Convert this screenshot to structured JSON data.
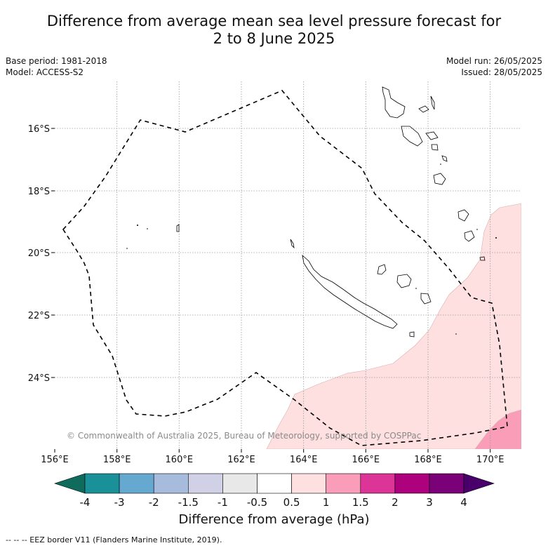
{
  "title": {
    "line1": "Difference from average mean sea level pressure forecast for",
    "line2": "2 to 8 June 2025"
  },
  "base_period": "Base period: 1981-2018",
  "model": "Model: ACCESS-S2",
  "model_run": "Model run: 26/05/2025",
  "issued": "Issued: 28/05/2025",
  "copyright": "© Commonwealth of Australia 2025, Bureau of Meteorology, supported by COSPPac",
  "footnote": "--  --  -- EEZ border V11 (Flanders Marine Institute, 2019).",
  "map": {
    "lon_range": [
      156,
      171
    ],
    "lat_range": [
      -26.2,
      -14.4
    ],
    "lon_ticks": [
      "156°E",
      "158°E",
      "160°E",
      "162°E",
      "164°E",
      "166°E",
      "168°E",
      "170°E"
    ],
    "lat_ticks": [
      "16°S",
      "18°S",
      "20°S",
      "22°S",
      "24°S"
    ],
    "grid": "dotted"
  },
  "colorbar": {
    "title": "Difference from average (hPa)",
    "labels": [
      "-4",
      "-3",
      "-2",
      "-1.5",
      "-1",
      "-0.5",
      "0.5",
      "1",
      "1.5",
      "2",
      "3",
      "4"
    ],
    "colors": {
      "below_min": "#0f6b5c",
      "bins": [
        "#1a9199",
        "#65a9d0",
        "#a7bcdc",
        "#d0d0e6",
        "#e8e8e8",
        "#ffffff",
        "#fde0df",
        "#f99db8",
        "#dd3497",
        "#ae017e",
        "#7a0177"
      ],
      "above_max": "#49006a"
    }
  }
}
